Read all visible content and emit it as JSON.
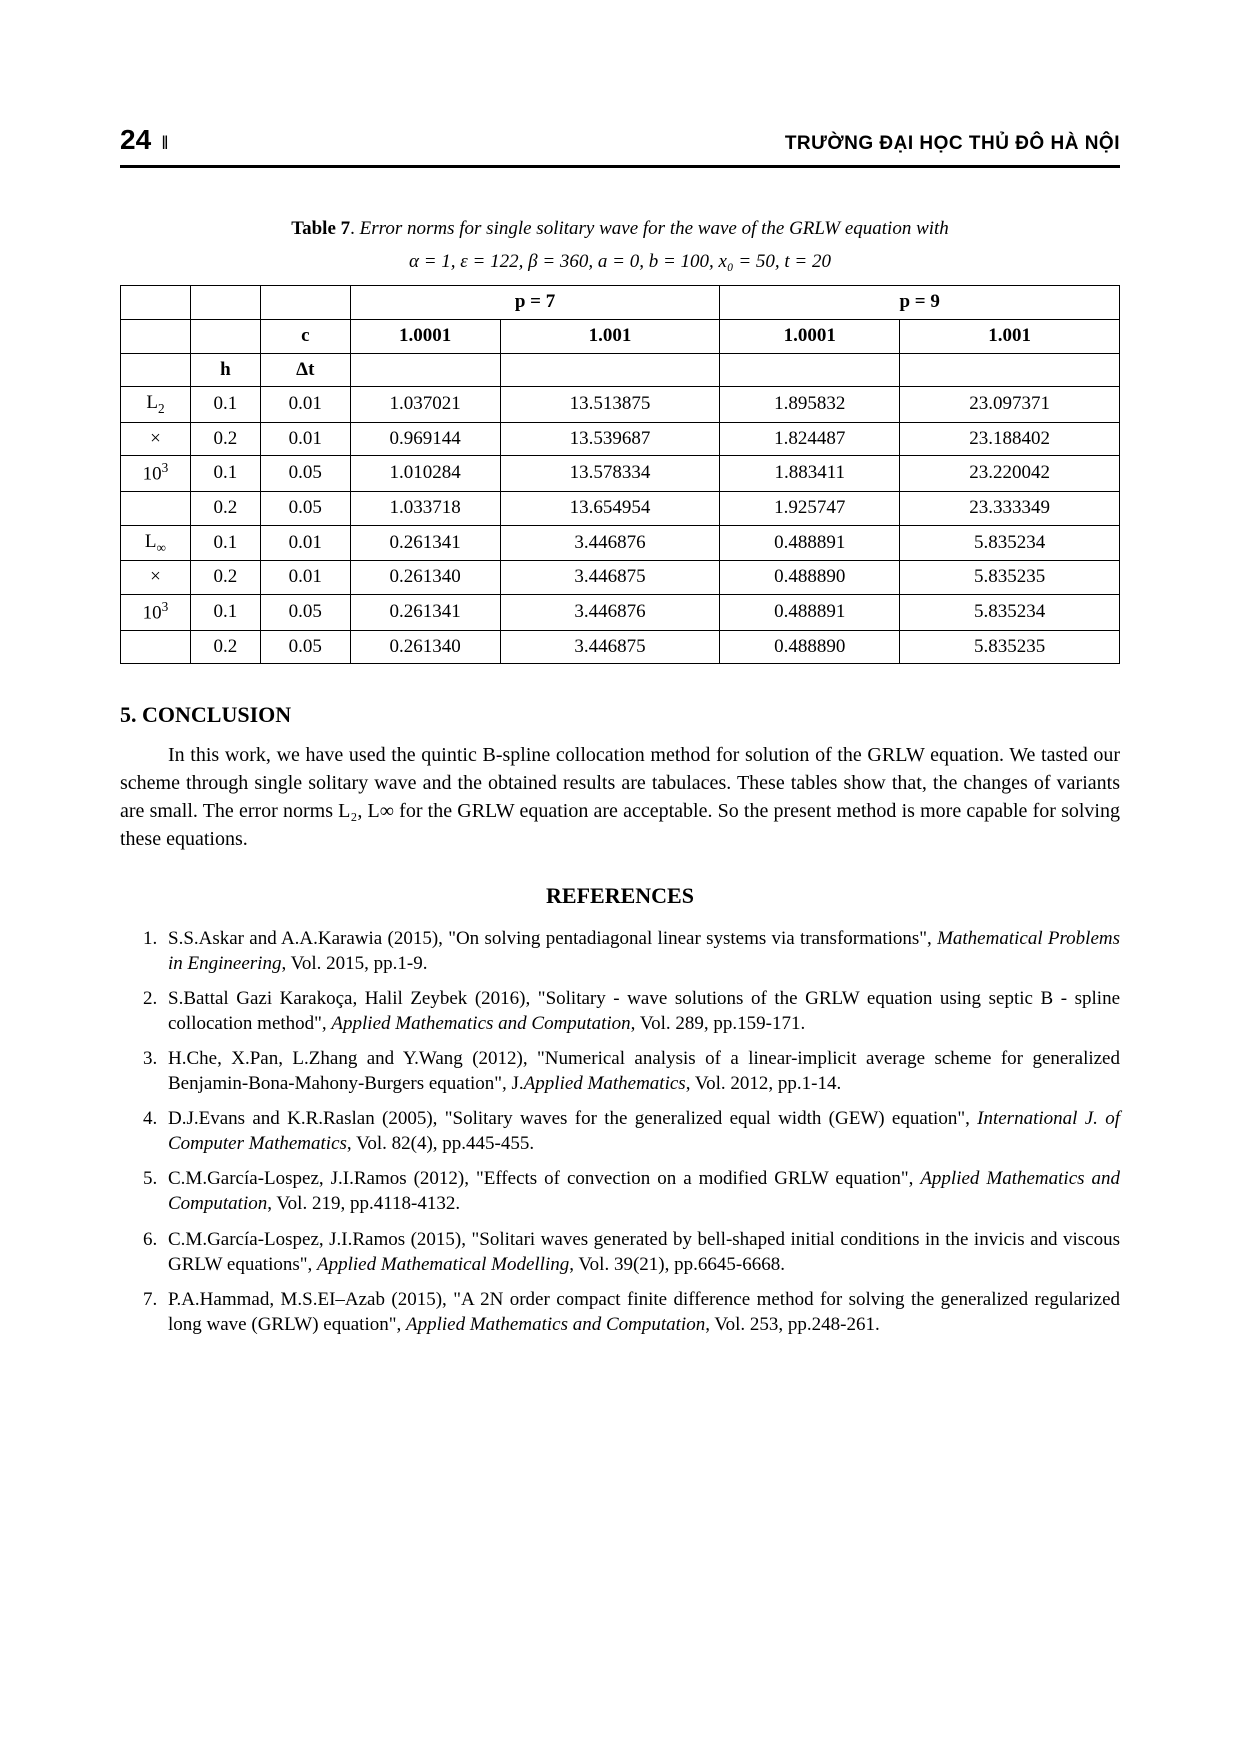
{
  "header": {
    "page_number": "24",
    "separator_glyph": "‖",
    "journal_name": "TRƯỜNG ĐẠI HỌC THỦ ĐÔ HÀ NỘI"
  },
  "table": {
    "label": "Table 7",
    "caption": "Error norms for single solitary wave for the wave of the GRLW equation with",
    "params": "α = 1, ε = 122, β = 360, a = 0, b = 100, x₀ = 50,  t = 20",
    "header": {
      "p7": "p = 7",
      "p9": "p = 9",
      "c": "c",
      "h": "h",
      "dt": "Δt",
      "v1": "1.0001",
      "v2": "1.001",
      "v3": "1.0001",
      "v4": "1.001"
    },
    "row_labels": {
      "l2": "L₂",
      "times": "×",
      "e3": "10³",
      "linf": "L∞"
    },
    "rows": [
      {
        "lab": "L₂",
        "h": "0.1",
        "dt": "0.01",
        "a": "1.037021",
        "b": "13.513875",
        "c": "1.895832",
        "d": "23.097371"
      },
      {
        "lab": "×",
        "h": "0.2",
        "dt": "0.01",
        "a": "0.969144",
        "b": "13.539687",
        "c": "1.824487",
        "d": "23.188402"
      },
      {
        "lab": "10³",
        "h": "0.1",
        "dt": "0.05",
        "a": "1.010284",
        "b": "13.578334",
        "c": "1.883411",
        "d": "23.220042"
      },
      {
        "lab": "",
        "h": "0.2",
        "dt": "0.05",
        "a": "1.033718",
        "b": "13.654954",
        "c": "1.925747",
        "d": "23.333349"
      },
      {
        "lab": "L∞",
        "h": "0.1",
        "dt": "0.01",
        "a": "0.261341",
        "b": "3.446876",
        "c": "0.488891",
        "d": "5.835234"
      },
      {
        "lab": "×",
        "h": "0.2",
        "dt": "0.01",
        "a": "0.261340",
        "b": "3.446875",
        "c": "0.488890",
        "d": "5.835235"
      },
      {
        "lab": "10³",
        "h": "0.1",
        "dt": "0.05",
        "a": "0.261341",
        "b": "3.446876",
        "c": "0.488891",
        "d": "5.835234"
      },
      {
        "lab": "",
        "h": "0.2",
        "dt": "0.05",
        "a": "0.261340",
        "b": "3.446875",
        "c": "0.488890",
        "d": "5.835235"
      }
    ]
  },
  "section": {
    "conclusion_title": "5. CONCLUSION",
    "conclusion_body": "In this work, we have used the quintic B-spline collocation method for solution of the GRLW equation. We tasted our scheme through single solitary wave and the obtained results are tabulaces. These tables show that, the changes of variants are small. The error norms L₂, L∞ for the GRLW equation are acceptable. So the present method is more capable for solving these equations."
  },
  "references": {
    "title": "REFERENCES",
    "items": [
      {
        "pre": "S.S.Askar and A.A.Karawia (2015), \"On solving pentadiagonal linear systems via transformations\", ",
        "ital": "Mathematical Problems in Engineering",
        "post": ", Vol. 2015, pp.1-9."
      },
      {
        "pre": "S.Battal Gazi Karakoça, Halil Zeybek (2016), \"Solitary - wave solutions of the GRLW equation using septic B - spline collocation method\",  ",
        "ital": "Applied Mathematics and Computation",
        "post": ", Vol. 289, pp.159-171."
      },
      {
        "pre": "H.Che, X.Pan, L.Zhang and  Y.Wang (2012), \"Numerical analysis of a linear-implicit average scheme for generalized Benjamin-Bona-Mahony-Burgers equation\", J.",
        "ital": "Applied Mathematics",
        "post": ", Vol. 2012, pp.1-14."
      },
      {
        "pre": "D.J.Evans and K.R.Raslan (2005), \"Solitary waves for the generalized equal width (GEW) equation\", ",
        "ital": "International J. of Computer Mathematics",
        "post": ", Vol. 82(4), pp.445-455."
      },
      {
        "pre": "C.M.García-Lospez, J.I.Ramos (2012), \"Effects of convection on a modified GRLW equation\", ",
        "ital": "Applied Mathematics and Computation",
        "post": ", Vol. 219, pp.4118-4132."
      },
      {
        "pre": "C.M.García-Lospez, J.I.Ramos (2015), \"Solitari waves generated by bell-shaped initial conditions in the invicis and viscous GRLW equations\", ",
        "ital": "Applied Mathematical Modelling",
        "post": ", Vol. 39(21), pp.6645-6668."
      },
      {
        "pre": "P.A.Hammad, M.S.EI–Azab (2015), \"A 2N order compact finite difference method for solving the generalized regularized long wave (GRLW) equation\", ",
        "ital": "Applied Mathematics and Computation",
        "post": ", Vol. 253, pp.248-261."
      }
    ]
  }
}
